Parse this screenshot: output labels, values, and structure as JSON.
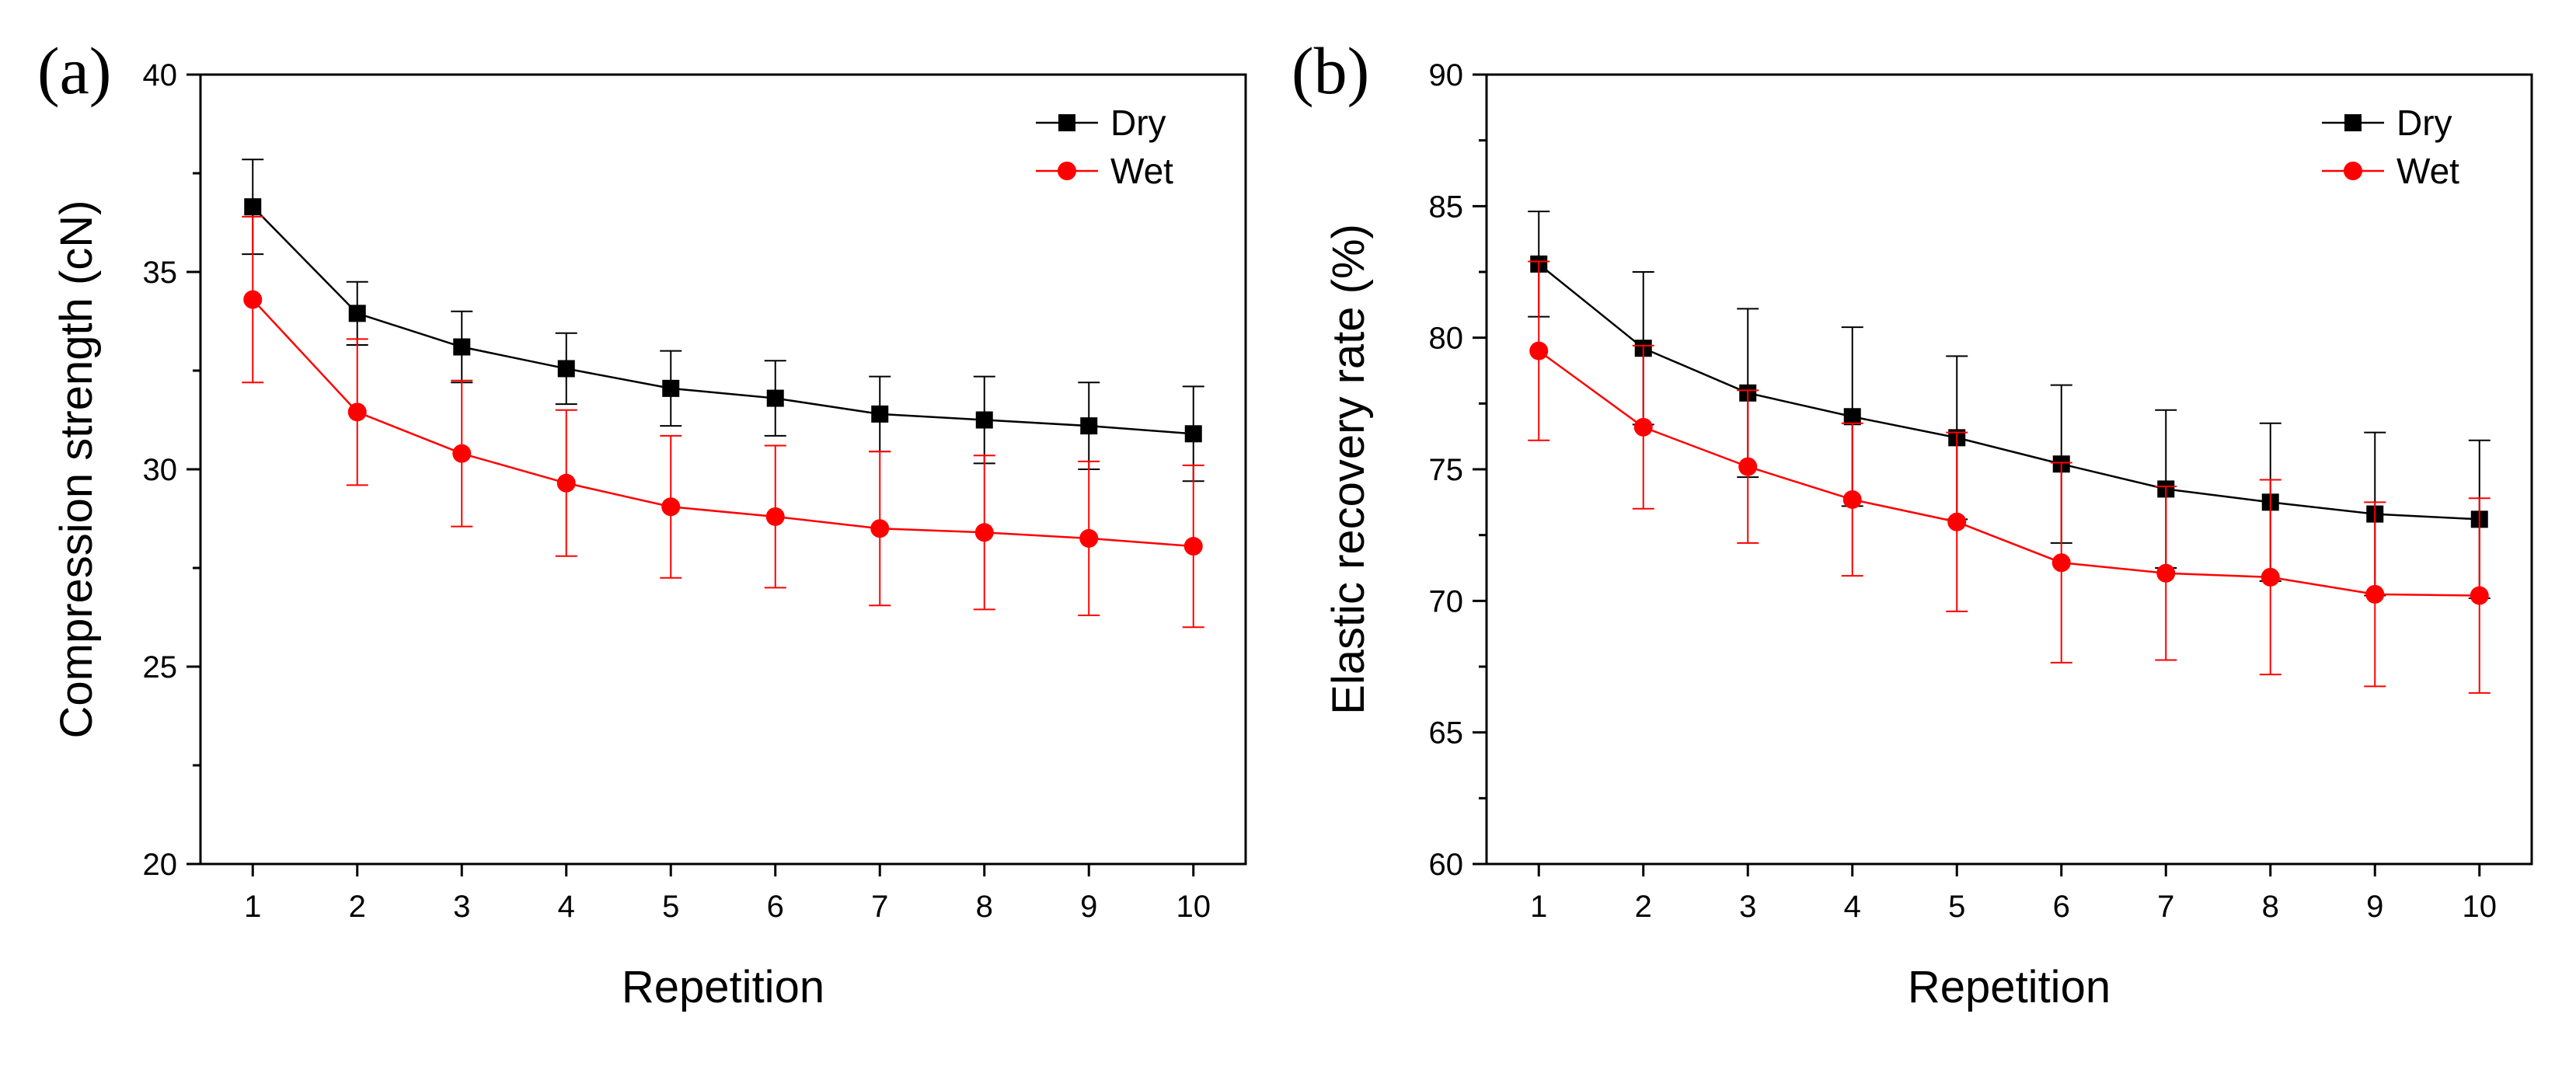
{
  "chart_data": [
    {
      "panel_label": "(a)",
      "type": "line",
      "title": "",
      "xlabel": "Repetition",
      "ylabel": "Compression strength (cN)",
      "categories": [
        "1",
        "2",
        "3",
        "4",
        "5",
        "6",
        "7",
        "8",
        "9",
        "10"
      ],
      "x": [
        1,
        2,
        3,
        4,
        5,
        6,
        7,
        8,
        9,
        10
      ],
      "xlim": [
        0.5,
        10.5
      ],
      "ylim": [
        20,
        40
      ],
      "yticks": [
        "20",
        "25",
        "30",
        "35",
        "40"
      ],
      "grid": false,
      "legend_position": "top-right",
      "series": [
        {
          "name": "Dry",
          "marker": "square",
          "color": "#000000",
          "values": [
            36.65,
            33.95,
            33.1,
            32.55,
            32.05,
            31.8,
            31.4,
            31.25,
            31.1,
            30.9
          ],
          "errors": [
            1.2,
            0.8,
            0.9,
            0.9,
            0.95,
            0.95,
            0.95,
            1.1,
            1.1,
            1.2
          ]
        },
        {
          "name": "Wet",
          "marker": "circle",
          "color": "#ff0000",
          "values": [
            34.3,
            31.45,
            30.4,
            29.65,
            29.05,
            28.8,
            28.5,
            28.4,
            28.25,
            28.05
          ],
          "errors": [
            2.1,
            1.85,
            1.85,
            1.85,
            1.8,
            1.8,
            1.95,
            1.95,
            1.95,
            2.05
          ]
        }
      ]
    },
    {
      "panel_label": "(b)",
      "type": "line",
      "title": "",
      "xlabel": "Repetition",
      "ylabel": "Elastic recovery rate (%)",
      "categories": [
        "1",
        "2",
        "3",
        "4",
        "5",
        "6",
        "7",
        "8",
        "9",
        "10"
      ],
      "x": [
        1,
        2,
        3,
        4,
        5,
        6,
        7,
        8,
        9,
        10
      ],
      "xlim": [
        0.5,
        10.5
      ],
      "ylim": [
        60,
        90
      ],
      "yticks": [
        "60",
        "65",
        "70",
        "75",
        "80",
        "85",
        "90"
      ],
      "grid": false,
      "legend_position": "top-right",
      "series": [
        {
          "name": "Dry",
          "marker": "square",
          "color": "#000000",
          "values": [
            82.8,
            79.6,
            77.9,
            77.0,
            76.2,
            75.2,
            74.25,
            73.75,
            73.3,
            73.1
          ],
          "errors": [
            2.0,
            2.9,
            3.2,
            3.4,
            3.1,
            3.0,
            3.0,
            3.0,
            3.1,
            3.0
          ]
        },
        {
          "name": "Wet",
          "marker": "circle",
          "color": "#ff0000",
          "values": [
            79.5,
            76.6,
            75.1,
            73.85,
            73.0,
            71.45,
            71.05,
            70.9,
            70.25,
            70.2
          ],
          "errors": [
            3.4,
            3.1,
            2.9,
            2.9,
            3.4,
            3.8,
            3.3,
            3.7,
            3.5,
            3.7
          ]
        }
      ]
    }
  ]
}
